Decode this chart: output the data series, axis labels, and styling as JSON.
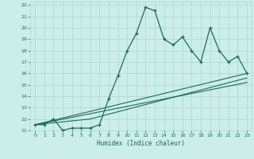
{
  "xlabel": "Humidex (Indice chaleur)",
  "bg_color": "#cceee8",
  "grid_color": "#aad8d0",
  "line_color": "#1a6b5a",
  "xlim": [
    -0.5,
    23.5
  ],
  "ylim": [
    11,
    22.3
  ],
  "xticks": [
    0,
    1,
    2,
    3,
    4,
    5,
    6,
    7,
    8,
    9,
    10,
    11,
    12,
    13,
    14,
    15,
    16,
    17,
    18,
    19,
    20,
    21,
    22,
    23
  ],
  "yticks": [
    11,
    12,
    13,
    14,
    15,
    16,
    17,
    18,
    19,
    20,
    21,
    22
  ],
  "main_line_x": [
    0,
    1,
    2,
    3,
    4,
    5,
    6,
    7,
    8,
    9,
    10,
    11,
    12,
    13,
    14,
    15,
    16,
    17,
    18,
    19,
    20,
    21,
    22,
    23
  ],
  "main_line_y": [
    11.5,
    11.5,
    12.0,
    11.0,
    11.2,
    11.2,
    11.2,
    11.5,
    13.8,
    15.8,
    18.0,
    19.5,
    21.8,
    21.5,
    19.0,
    18.5,
    19.2,
    18.0,
    17.0,
    20.0,
    18.0,
    17.0,
    17.5,
    16.0
  ],
  "line2_x": [
    0,
    23
  ],
  "line2_y": [
    11.5,
    16.0
  ],
  "line3_x": [
    0,
    23
  ],
  "line3_y": [
    11.5,
    15.2
  ],
  "line4_x": [
    0,
    6,
    23
  ],
  "line4_y": [
    11.5,
    12.0,
    15.6
  ]
}
